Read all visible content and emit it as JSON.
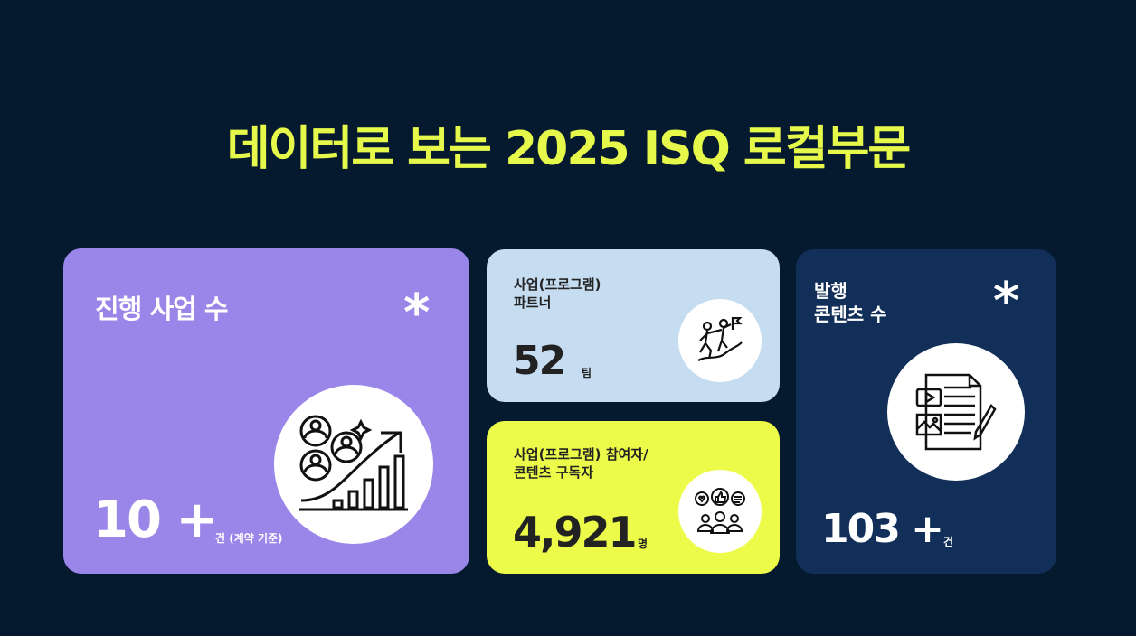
{
  "title": "데이터로 보는 2025 ISQ 로컬부문",
  "colors": {
    "background": "#061a2f",
    "title": "#e6f84a",
    "card_purple": "#9a86e8",
    "card_lightblue": "#c6dcf1",
    "card_yellow": "#ecfb4a",
    "card_navy": "#112f58"
  },
  "cards": [
    {
      "label": "진행 사업 수",
      "value": "10 +",
      "unit": "건 (계약 기준)",
      "icon": "people-growth-chart-icon",
      "decor": "asterisk-icon"
    },
    {
      "label_lines": [
        "사업(프로그램)",
        "파트너"
      ],
      "value": "52",
      "unit": "팀",
      "icon": "climbing-partners-flag-icon"
    },
    {
      "label_lines": [
        "사업(프로그램) 참여자/",
        "콘텐츠 구독자"
      ],
      "value": "4,921",
      "unit": "명",
      "icon": "audience-feedback-icon"
    },
    {
      "label_lines": [
        "발행",
        "콘텐츠 수"
      ],
      "value": "103 +",
      "unit": "건",
      "icon": "content-document-pencil-icon",
      "decor": "asterisk-icon"
    }
  ]
}
